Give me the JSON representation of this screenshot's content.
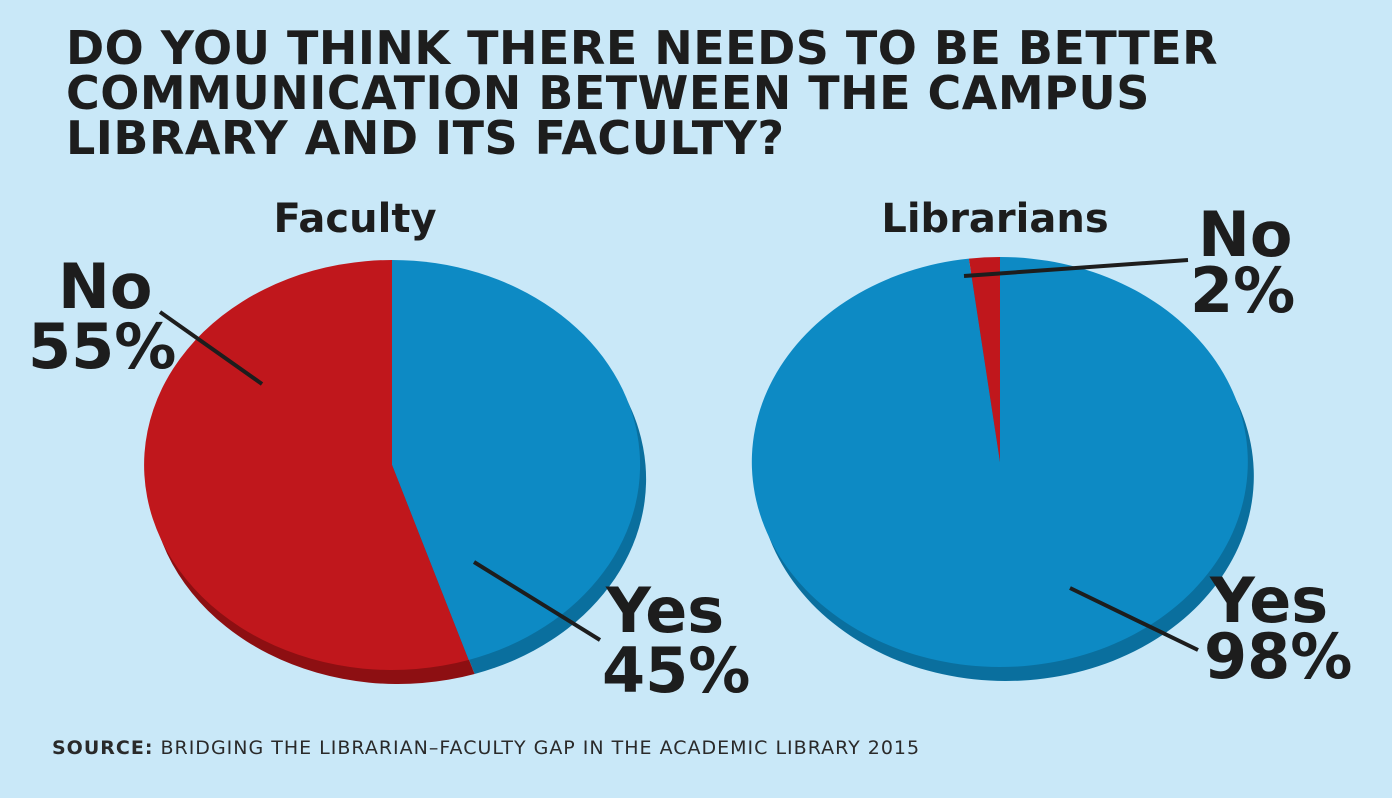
{
  "title": "DO YOU THINK THERE NEEDS TO BE BETTER COMMUNICATION BETWEEN THE CAMPUS LIBRARY AND ITS FACULTY?",
  "source": {
    "label": "SOURCE:",
    "text": "BRIDGING THE LIBRARIAN–FACULTY GAP IN THE ACADEMIC LIBRARY 2015"
  },
  "colors": {
    "background": "#c9e8f8",
    "yes": "#0d8ac4",
    "yes_side": "#0a6f9e",
    "no": "#c0171c",
    "no_side": "#8d0f12"
  },
  "chart_data": [
    {
      "type": "pie",
      "title": "Faculty",
      "slices": [
        {
          "label": "Yes",
          "value": 45,
          "display": "45%"
        },
        {
          "label": "No",
          "value": 55,
          "display": "55%"
        }
      ]
    },
    {
      "type": "pie",
      "title": "Librarians",
      "slices": [
        {
          "label": "Yes",
          "value": 98,
          "display": "98%"
        },
        {
          "label": "No",
          "value": 2,
          "display": "2%"
        }
      ]
    }
  ]
}
